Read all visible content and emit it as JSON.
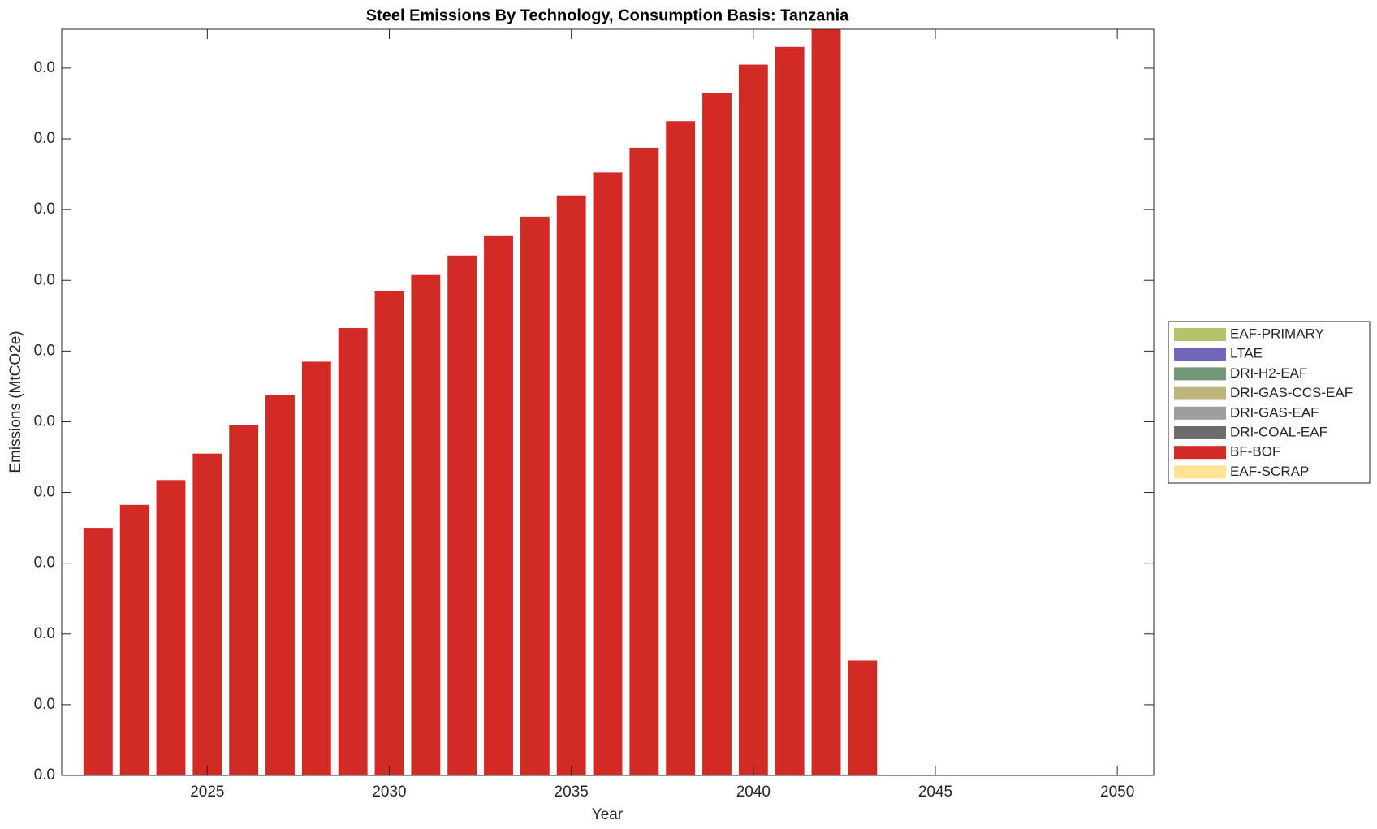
{
  "chart_data": {
    "type": "bar",
    "stacked": true,
    "title": "Steel Emissions By Technology, Consumption Basis: Tanzania",
    "xlabel": "Year",
    "ylabel": "Emissions (MtCO2e)",
    "x": [
      2022,
      2023,
      2024,
      2025,
      2026,
      2027,
      2028,
      2029,
      2030,
      2031,
      2032,
      2033,
      2034,
      2035,
      2036,
      2037,
      2038,
      2039,
      2040,
      2041,
      2042,
      2043
    ],
    "xlim": [
      2021,
      2051
    ],
    "xticks": [
      2025,
      2030,
      2035,
      2040,
      2045,
      2050
    ],
    "ylim": [
      0,
      0.0422
    ],
    "yticks": [
      {
        "value": 0,
        "label": "0.0"
      },
      {
        "value": 0.004,
        "label": "0.0"
      },
      {
        "value": 0.008,
        "label": "0.0"
      },
      {
        "value": 0.012,
        "label": "0.0"
      },
      {
        "value": 0.016,
        "label": "0.0"
      },
      {
        "value": 0.02,
        "label": "0.0"
      },
      {
        "value": 0.024,
        "label": "0.0"
      },
      {
        "value": 0.028,
        "label": "0.0"
      },
      {
        "value": 0.032,
        "label": "0.0"
      },
      {
        "value": 0.036,
        "label": "0.0"
      },
      {
        "value": 0.04,
        "label": "0.0"
      }
    ],
    "grid": false,
    "legend": "outside right",
    "series": [
      {
        "name": "EAF-PRIMARY",
        "color": "#b5c36b",
        "values": [
          0,
          0,
          0,
          0,
          0,
          0,
          0,
          0,
          0,
          0,
          0,
          0,
          0,
          0,
          0,
          0,
          0,
          0,
          0,
          0,
          0,
          0
        ]
      },
      {
        "name": "LTAE",
        "color": "#6f68b8",
        "values": [
          0,
          0,
          0,
          0,
          0,
          0,
          0,
          0,
          0,
          0,
          0,
          0,
          0,
          0,
          0,
          0,
          0,
          0,
          0,
          0,
          0,
          0
        ]
      },
      {
        "name": "DRI-H2-EAF",
        "color": "#739878",
        "values": [
          0,
          0,
          0,
          0,
          0,
          0,
          0,
          0,
          0,
          0,
          0,
          0,
          0,
          0,
          0,
          0,
          0,
          0,
          0,
          0,
          0,
          0
        ]
      },
      {
        "name": "DRI-GAS-CCS-EAF",
        "color": "#bdb67c",
        "values": [
          0,
          0,
          0,
          0,
          0,
          0,
          0,
          0,
          0,
          0,
          0,
          0,
          0,
          0,
          0,
          0,
          0,
          0,
          0,
          0,
          0,
          0
        ]
      },
      {
        "name": "DRI-GAS-EAF",
        "color": "#9d9d9d",
        "values": [
          0,
          0,
          0,
          0,
          0,
          0,
          0,
          0,
          0,
          0,
          0,
          0,
          0,
          0,
          0,
          0,
          0,
          0,
          0,
          0,
          0,
          0
        ]
      },
      {
        "name": "DRI-COAL-EAF",
        "color": "#6c6c6c",
        "values": [
          0,
          0,
          0,
          0,
          0,
          0,
          0,
          0,
          0,
          0,
          0,
          0,
          0,
          0,
          0,
          0,
          0,
          0,
          0,
          0,
          0,
          0
        ]
      },
      {
        "name": "BF-BOF",
        "color": "#d22b26",
        "values": [
          0.014,
          0.0153,
          0.0167,
          0.0182,
          0.0198,
          0.0215,
          0.0234,
          0.0253,
          0.0274,
          0.0283,
          0.0294,
          0.0305,
          0.0316,
          0.0328,
          0.0341,
          0.0355,
          0.037,
          0.0386,
          0.0402,
          0.0412,
          0.043,
          0.0065
        ]
      },
      {
        "name": "EAF-SCRAP",
        "color": "#fde393",
        "values": [
          0,
          0,
          0,
          0,
          0,
          0,
          0,
          0,
          0,
          0,
          0,
          0,
          0,
          0,
          0,
          0,
          0,
          0,
          0,
          0,
          0,
          0
        ]
      }
    ]
  }
}
